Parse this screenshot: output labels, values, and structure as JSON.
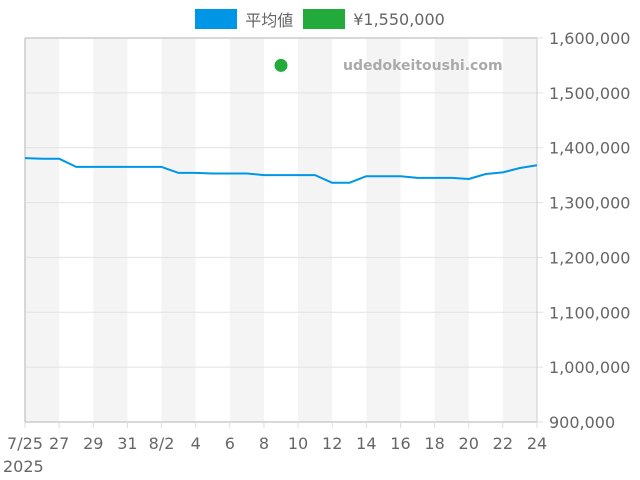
{
  "legend": {
    "items": [
      {
        "label": "平均値",
        "color": "#0096e6"
      },
      {
        "label": "¥1,550,000",
        "color": "#22aa3a"
      }
    ]
  },
  "watermark": "udedokeitoushi.com",
  "chart_data": {
    "type": "line",
    "title": "",
    "xlabel": "",
    "ylabel": "",
    "year_label": "2025",
    "ylim": [
      900000,
      1600000
    ],
    "y_ticks": [
      "1,600,000",
      "1,500,000",
      "1,400,000",
      "1,300,000",
      "1,200,000",
      "1,100,000",
      "1,000,000",
      "900,000"
    ],
    "y_tick_values": [
      1600000,
      1500000,
      1400000,
      1300000,
      1200000,
      1100000,
      1000000,
      900000
    ],
    "x_tick_labels": [
      "7/25",
      "27",
      "29",
      "31",
      "8/2",
      "4",
      "6",
      "8",
      "10",
      "12",
      "14",
      "16",
      "18",
      "20",
      "22",
      "24"
    ],
    "x": [
      "7/25",
      "7/26",
      "7/27",
      "7/28",
      "7/29",
      "7/30",
      "7/31",
      "8/1",
      "8/2",
      "8/3",
      "8/4",
      "8/5",
      "8/6",
      "8/7",
      "8/8",
      "8/9",
      "8/10",
      "8/11",
      "8/12",
      "8/13",
      "8/14",
      "8/15",
      "8/16",
      "8/17",
      "8/18",
      "8/19",
      "8/20",
      "8/21",
      "8/22",
      "8/23",
      "8/24"
    ],
    "grid": true,
    "legend_position": "top",
    "series": [
      {
        "name": "平均値",
        "color": "#0096e6",
        "values": [
          1381000,
          1380000,
          1380000,
          1365000,
          1365000,
          1365000,
          1365000,
          1365000,
          1365000,
          1354000,
          1354000,
          1353000,
          1353000,
          1353000,
          1350000,
          1350000,
          1350000,
          1350000,
          1336000,
          1336000,
          1348000,
          1348000,
          1348000,
          1345000,
          1345000,
          1345000,
          1343000,
          1352000,
          1355000,
          1363000,
          1368000
        ]
      },
      {
        "name": "¥1,550,000",
        "color": "#22aa3a",
        "type": "scatter",
        "points": [
          {
            "x": "8/9",
            "y": 1550000
          }
        ]
      }
    ]
  }
}
